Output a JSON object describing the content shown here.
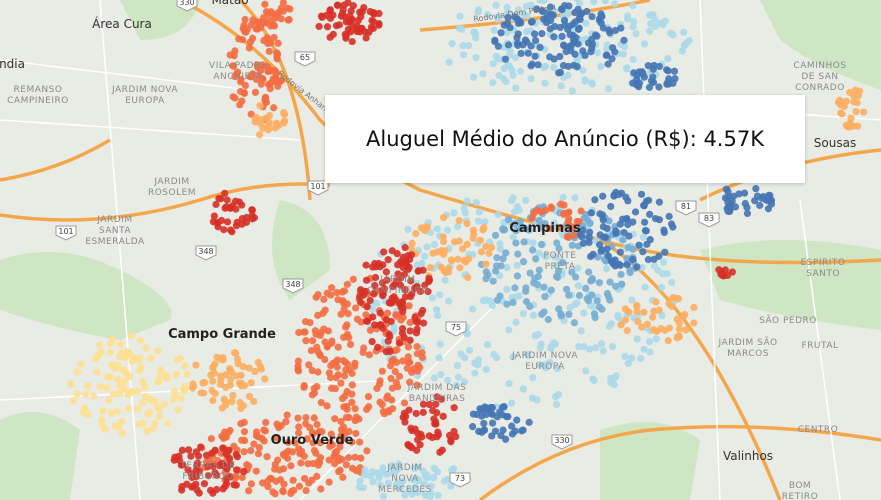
{
  "tooltip": {
    "text": "Aluguel Médio do Anúncio (R$): 4.57K"
  },
  "map_labels": [
    {
      "lines": [
        "Matao"
      ]
    },
    {
      "lines": [
        "Área Cura"
      ]
    },
    {
      "lines": [
        "Hortolândia"
      ]
    },
    {
      "lines": [
        "REMANSO",
        "CAMPINEIRO"
      ]
    },
    {
      "lines": [
        "JARDIM NOVA",
        "EUROPA"
      ]
    },
    {
      "lines": [
        "VILA PADRE",
        "ANCHIETA"
      ]
    },
    {
      "lines": [
        "JARDIM",
        "ROSOLEM"
      ]
    },
    {
      "lines": [
        "JARDIM",
        "SANTA",
        "ESMERALDA"
      ]
    },
    {
      "lines": [
        "Campinas"
      ]
    },
    {
      "lines": [
        "PONTE",
        "PRETA"
      ]
    },
    {
      "lines": [
        "Campo Grande"
      ]
    },
    {
      "lines": [
        "JARDIM",
        "CAMPINEIRO"
      ]
    },
    {
      "lines": [
        "JARDIM NOVA",
        "EUROPA"
      ]
    },
    {
      "lines": [
        "JARDIM DAS",
        "BANDEIRAS"
      ]
    },
    {
      "lines": [
        "Ouro Verde"
      ]
    },
    {
      "lines": [
        "TERRAS DE",
        "FRIBURGO"
      ]
    },
    {
      "lines": [
        "JARDIM",
        "NOVA",
        "MERCEDES"
      ]
    },
    {
      "lines": [
        "Valinhos"
      ]
    },
    {
      "lines": [
        "CAMINHOS",
        "DE SAN",
        "CONRADO"
      ]
    },
    {
      "lines": [
        "Sousas"
      ]
    },
    {
      "lines": [
        "ESPIRITO",
        "SANTO"
      ]
    },
    {
      "lines": [
        "SÃO PEDRO"
      ]
    },
    {
      "lines": [
        "JARDIM SÃO",
        "MARCOS"
      ]
    },
    {
      "lines": [
        "FRUTAL"
      ]
    },
    {
      "lines": [
        "CENTRO"
      ]
    },
    {
      "lines": [
        "BOM",
        "RETIRO"
      ]
    },
    {
      "lines": [
        "Rodovia Dom Pedro I"
      ]
    },
    {
      "lines": [
        "Rodovia Anhanguera"
      ]
    }
  ],
  "road_shields": [
    "330",
    "65",
    "101",
    "101",
    "348",
    "348",
    "75",
    "81",
    "83",
    "330",
    "73"
  ]
}
